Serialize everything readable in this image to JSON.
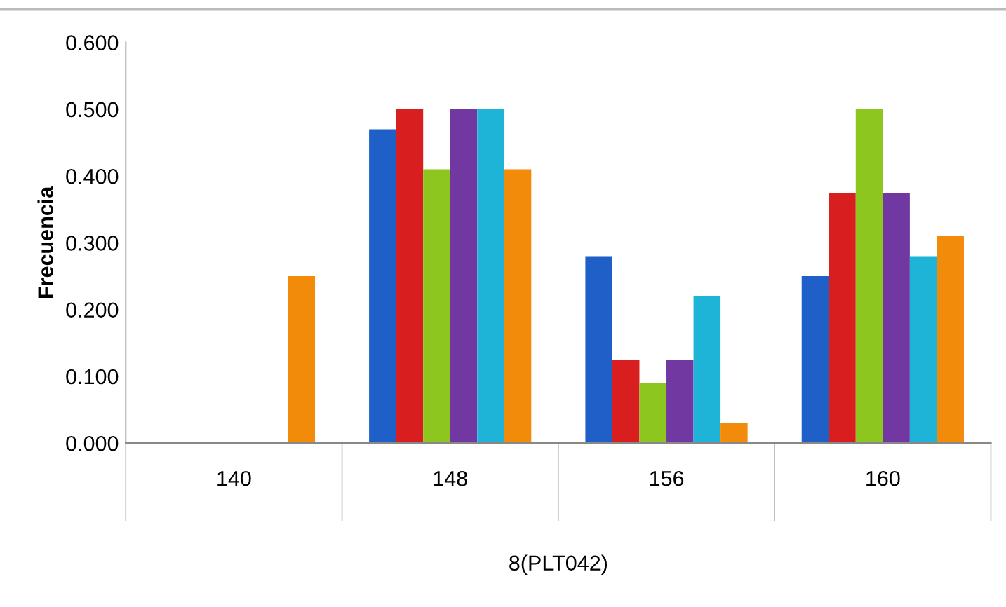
{
  "chart_data": {
    "type": "bar",
    "ylabel": "Frecuencia",
    "xlabel": "8(PLT042)",
    "categories": [
      "140",
      "148",
      "156",
      "160"
    ],
    "series": [
      {
        "color": "#1f5fc8",
        "values": [
          0,
          0.47,
          0.28,
          0.25
        ]
      },
      {
        "color": "#d81e1e",
        "values": [
          0,
          0.5,
          0.125,
          0.375
        ]
      },
      {
        "color": "#8cc61e",
        "values": [
          0,
          0.41,
          0.09,
          0.5
        ]
      },
      {
        "color": "#7038a0",
        "values": [
          0,
          0.5,
          0.125,
          0.375
        ]
      },
      {
        "color": "#1eb4d8",
        "values": [
          0,
          0.5,
          0.22,
          0.28
        ]
      },
      {
        "color": "#f28a0a",
        "values": [
          0.25,
          0.41,
          0.03,
          0.31
        ]
      }
    ],
    "ylim": [
      0,
      0.6
    ],
    "yticks": [
      {
        "value": 0,
        "label": "0.000"
      },
      {
        "value": 0.1,
        "label": "0.100"
      },
      {
        "value": 0.2,
        "label": "0.200"
      },
      {
        "value": 0.3,
        "label": "0.300"
      },
      {
        "value": 0.4,
        "label": "0.400"
      },
      {
        "value": 0.5,
        "label": "0.500"
      },
      {
        "value": 0.6,
        "label": "0.600"
      }
    ],
    "grid": false,
    "legend": false
  }
}
